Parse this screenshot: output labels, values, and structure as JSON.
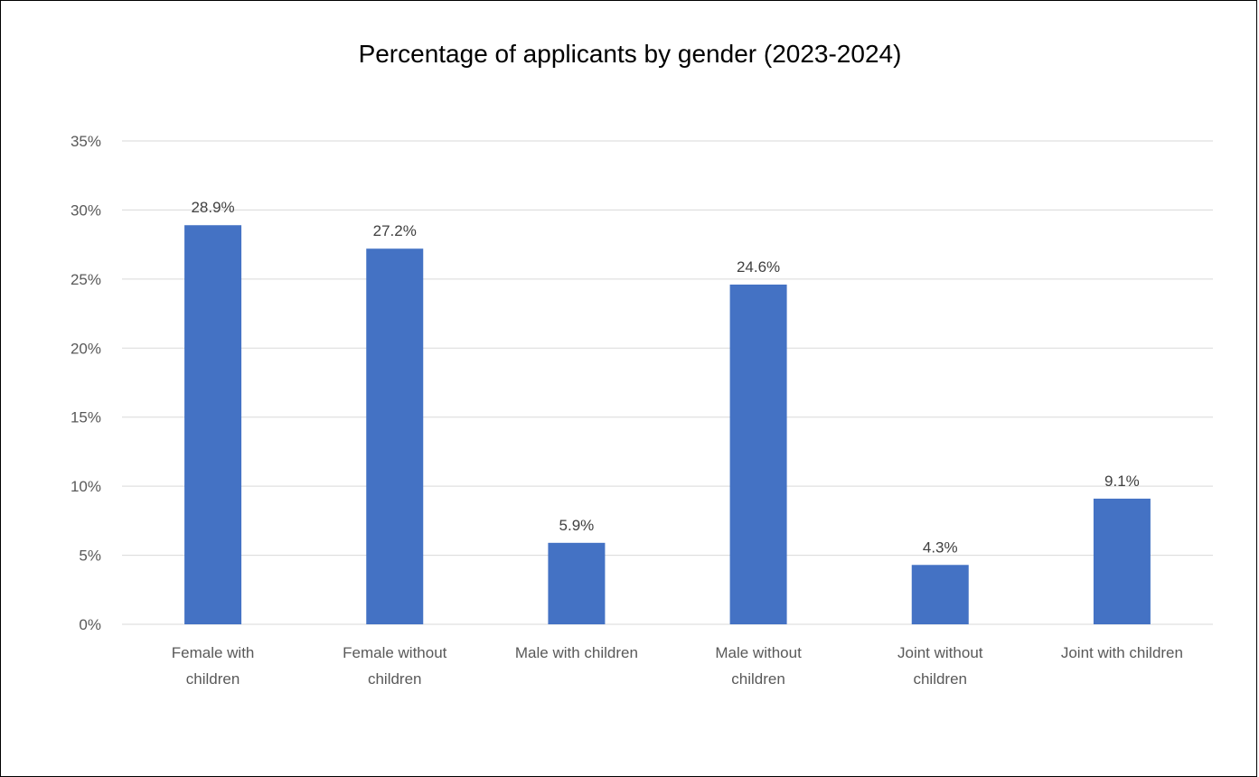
{
  "chart_data": {
    "type": "bar",
    "title": "Percentage of applicants by gender (2023-2024)",
    "xlabel": "",
    "ylabel": "",
    "categories": [
      [
        "Female with",
        "children"
      ],
      [
        "Female without",
        "children"
      ],
      [
        "Male with children"
      ],
      [
        "Male without",
        "children"
      ],
      [
        "Joint without",
        "children"
      ],
      [
        "Joint with children"
      ]
    ],
    "values": [
      28.9,
      27.2,
      5.9,
      24.6,
      4.3,
      9.1
    ],
    "data_labels": [
      "28.9%",
      "27.2%",
      "5.9%",
      "24.6%",
      "4.3%",
      "9.1%"
    ],
    "ylim": [
      0,
      35
    ],
    "yticks": [
      0,
      5,
      10,
      15,
      20,
      25,
      30,
      35
    ],
    "ytick_labels": [
      "0%",
      "5%",
      "10%",
      "15%",
      "20%",
      "25%",
      "30%",
      "35%"
    ],
    "grid": true,
    "legend": "none",
    "bar_color": "#4472C4",
    "grid_color": "#D9D9D9"
  }
}
